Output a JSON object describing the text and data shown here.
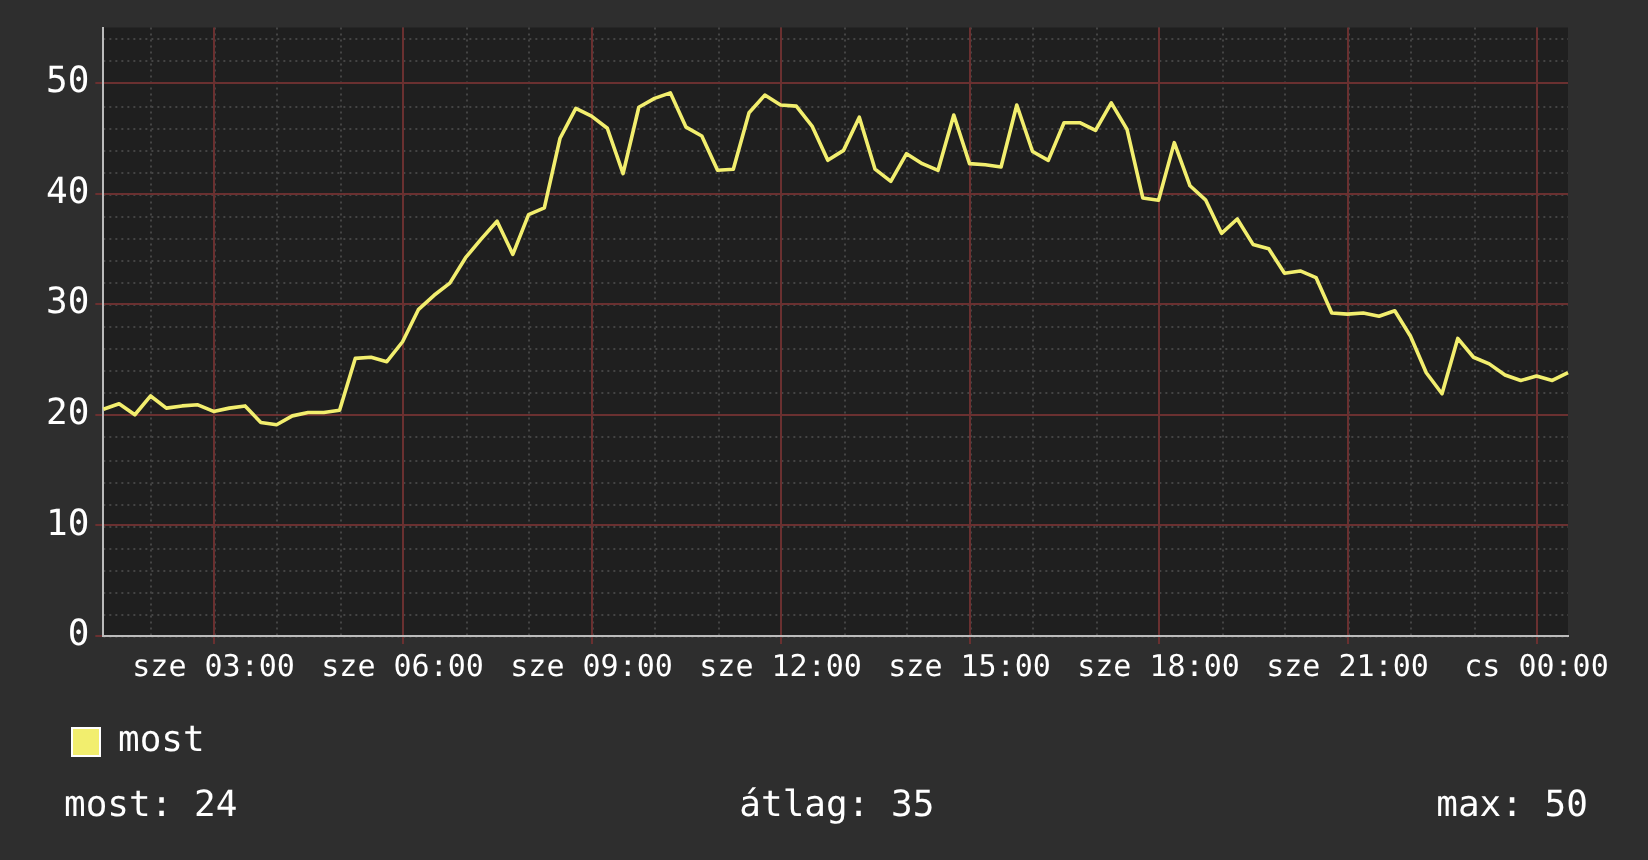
{
  "chart_data": {
    "type": "line",
    "legend": "bottom left",
    "grid": true,
    "marker": "none",
    "line_style": "solid",
    "categories": [
      null,
      null,
      null,
      null,
      null,
      null,
      null,
      "sze 03:00",
      null,
      null,
      null,
      null,
      null,
      null,
      null,
      null,
      null,
      null,
      null,
      "sze 06:00",
      null,
      null,
      null,
      null,
      null,
      null,
      null,
      null,
      null,
      null,
      null,
      "sze 09:00",
      null,
      null,
      null,
      null,
      null,
      null,
      null,
      null,
      null,
      null,
      null,
      "sze 12:00",
      null,
      null,
      null,
      null,
      null,
      null,
      null,
      null,
      null,
      null,
      null,
      "sze 15:00",
      null,
      null,
      null,
      null,
      null,
      null,
      null,
      null,
      null,
      null,
      null,
      "sze 18:00",
      null,
      null,
      null,
      null,
      null,
      null,
      null,
      null,
      null,
      null,
      null,
      "sze 21:00",
      null,
      null,
      null,
      null,
      null,
      null,
      null,
      null,
      null,
      null,
      null,
      "cs 00:00",
      null,
      null
    ],
    "ylim": [
      0,
      55
    ],
    "yticks": [
      0,
      10,
      20,
      30,
      40,
      50
    ],
    "series": [
      {
        "name": "most",
        "color": "#f2ee6e",
        "values": [
          20.5,
          21,
          20,
          21.7,
          20.6,
          20.8,
          20.9,
          20.3,
          20.6,
          20.8,
          19.3,
          19.1,
          19.9,
          20.2,
          20.2,
          20.4,
          25.1,
          25.2,
          24.8,
          26.6,
          29.5,
          30.8,
          31.9,
          34.2,
          35.9,
          37.5,
          34.5,
          38.1,
          38.7,
          45,
          47.7,
          47,
          45.9,
          41.8,
          47.8,
          48.6,
          49.1,
          46,
          45.2,
          42.1,
          42.2,
          47.3,
          48.9,
          48,
          47.9,
          46.1,
          43,
          43.9,
          46.9,
          42.2,
          41.1,
          43.6,
          42.7,
          42.1,
          47.1,
          42.7,
          42.6,
          42.4,
          48,
          43.8,
          43,
          46.4,
          46.4,
          45.7,
          48.2,
          45.8,
          39.6,
          39.4,
          44.6,
          40.7,
          39.4,
          36.4,
          37.7,
          35.4,
          35,
          32.8,
          33,
          32.4,
          29.2,
          29.1,
          29.2,
          28.9,
          29.4,
          27.1,
          23.8,
          21.9,
          26.9,
          25.2,
          24.6,
          23.6,
          23.1,
          23.5,
          23.1,
          23.8
        ]
      }
    ],
    "annotations": [
      "most: 24",
      "átlag: 35",
      "max: 50"
    ]
  }
}
